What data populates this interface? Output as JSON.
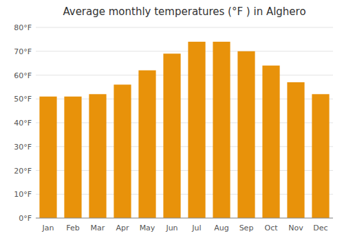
{
  "chart_data": {
    "type": "bar",
    "title": "Average monthly temperatures (°F ) in Alghero",
    "categories": [
      "Jan",
      "Feb",
      "Mar",
      "Apr",
      "May",
      "Jun",
      "Jul",
      "Aug",
      "Sep",
      "Oct",
      "Nov",
      "Dec"
    ],
    "values": [
      51,
      51,
      52,
      56,
      62,
      69,
      74,
      74,
      70,
      64,
      57,
      52
    ],
    "color": "#E8920A",
    "ylim": [
      0,
      80
    ],
    "yticks": [
      {
        "value": 0,
        "label": "0°F"
      },
      {
        "value": 10,
        "label": "10°F"
      },
      {
        "value": 20,
        "label": "20°F"
      },
      {
        "value": 30,
        "label": "30°F"
      },
      {
        "value": 40,
        "label": "40°F"
      },
      {
        "value": 50,
        "label": "50°F"
      },
      {
        "value": 60,
        "label": "60°F"
      },
      {
        "value": 70,
        "label": "70°F"
      },
      {
        "value": 80,
        "label": "80°F"
      }
    ],
    "grid": true
  }
}
